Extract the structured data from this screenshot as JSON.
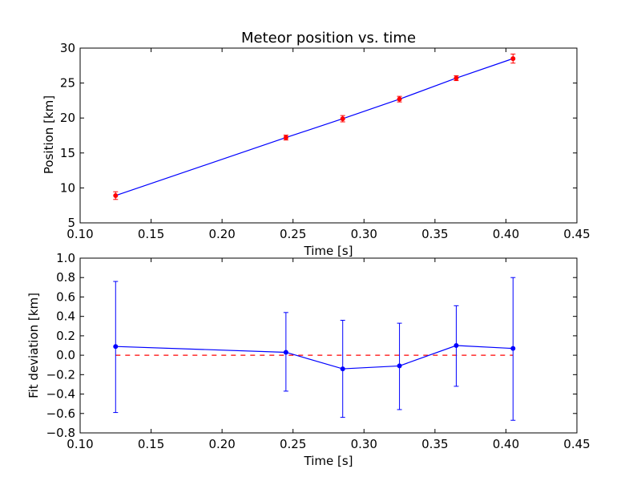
{
  "chart_data": [
    {
      "type": "line",
      "title": "Meteor position vs. time",
      "xlabel": "Time [s]",
      "ylabel": "Position [km]",
      "xlim": [
        0.1,
        0.45
      ],
      "ylim": [
        5,
        30
      ],
      "xticks": [
        "0.10",
        "0.15",
        "0.20",
        "0.25",
        "0.30",
        "0.35",
        "0.40",
        "0.45"
      ],
      "yticks": [
        "5",
        "10",
        "15",
        "20",
        "25",
        "30"
      ],
      "grid": false,
      "series": [
        {
          "x": [
            0.125,
            0.245,
            0.285,
            0.325,
            0.365,
            0.405
          ],
          "y": [
            8.9,
            17.2,
            19.9,
            22.7,
            25.7,
            28.5
          ],
          "yerr": [
            0.55,
            0.35,
            0.45,
            0.4,
            0.35,
            0.65
          ],
          "line_color": "#0000ff",
          "marker_color": "#ff0000",
          "errorbar_color": "#ff0000"
        }
      ]
    },
    {
      "type": "line",
      "title": "",
      "xlabel": "Time [s]",
      "ylabel": "Fit deviation [km]",
      "xlim": [
        0.1,
        0.45
      ],
      "ylim": [
        -0.8,
        1.0
      ],
      "xticks": [
        "0.10",
        "0.15",
        "0.20",
        "0.25",
        "0.30",
        "0.35",
        "0.40",
        "0.45"
      ],
      "yticks": [
        "−0.8",
        "−0.6",
        "−0.4",
        "−0.2",
        "0.0",
        "0.2",
        "0.4",
        "0.6",
        "0.8",
        "1.0"
      ],
      "grid": false,
      "reference_line": {
        "y": 0.0,
        "style": "dashed",
        "color": "#ff0000"
      },
      "series": [
        {
          "x": [
            0.125,
            0.245,
            0.285,
            0.325,
            0.365,
            0.405
          ],
          "y": [
            0.09,
            0.03,
            -0.14,
            -0.11,
            0.1,
            0.07
          ],
          "yerr_low": [
            -0.59,
            -0.37,
            -0.64,
            -0.56,
            -0.32,
            -0.67
          ],
          "yerr_high": [
            0.76,
            0.44,
            0.36,
            0.33,
            0.51,
            0.8
          ],
          "line_color": "#0000ff",
          "marker_color": "#0000ff",
          "errorbar_color": "#0000ff"
        }
      ]
    }
  ]
}
